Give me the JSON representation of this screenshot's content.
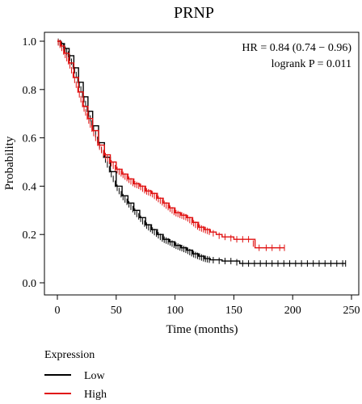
{
  "chart_data": {
    "type": "line",
    "title": "PRNP",
    "xlabel": "Time (months)",
    "ylabel": "Probability",
    "xlim": [
      0,
      250
    ],
    "ylim": [
      0,
      1.05
    ],
    "xticks": [
      "0",
      "50",
      "100",
      "150",
      "200",
      "250"
    ],
    "yticks": [
      "0.0",
      "0.2",
      "0.4",
      "0.6",
      "0.8",
      "1.0"
    ],
    "annotations": [
      "HR = 0.84 (0.74 − 0.96)",
      "logrank P = 0.011"
    ],
    "legend": {
      "title": "Expression",
      "position": "bottom-left"
    },
    "grid": false,
    "series": [
      {
        "name": "Low",
        "color": "#000000",
        "x": [
          0,
          3,
          6,
          10,
          14,
          18,
          22,
          26,
          30,
          35,
          40,
          45,
          50,
          55,
          60,
          65,
          70,
          75,
          80,
          85,
          90,
          95,
          100,
          105,
          110,
          115,
          120,
          125,
          130,
          140,
          150,
          155,
          170,
          185,
          200,
          215,
          230,
          245
        ],
        "y": [
          1.0,
          0.99,
          0.97,
          0.94,
          0.89,
          0.83,
          0.77,
          0.71,
          0.65,
          0.58,
          0.52,
          0.46,
          0.4,
          0.36,
          0.33,
          0.3,
          0.27,
          0.24,
          0.22,
          0.2,
          0.18,
          0.17,
          0.155,
          0.145,
          0.135,
          0.12,
          0.11,
          0.1,
          0.095,
          0.09,
          0.09,
          0.08,
          0.08,
          0.08,
          0.08,
          0.08,
          0.08,
          0.08
        ]
      },
      {
        "name": "High",
        "color": "#e01010",
        "x": [
          0,
          3,
          6,
          10,
          14,
          18,
          22,
          26,
          30,
          35,
          40,
          45,
          50,
          55,
          60,
          65,
          70,
          75,
          80,
          85,
          90,
          95,
          100,
          105,
          110,
          115,
          120,
          125,
          130,
          135,
          140,
          145,
          150,
          155,
          160,
          165,
          168,
          175,
          185,
          193
        ],
        "y": [
          1.0,
          0.98,
          0.95,
          0.91,
          0.85,
          0.79,
          0.73,
          0.68,
          0.63,
          0.57,
          0.53,
          0.5,
          0.47,
          0.45,
          0.43,
          0.41,
          0.4,
          0.38,
          0.37,
          0.35,
          0.33,
          0.31,
          0.29,
          0.28,
          0.27,
          0.25,
          0.23,
          0.22,
          0.21,
          0.2,
          0.19,
          0.19,
          0.18,
          0.18,
          0.18,
          0.18,
          0.145,
          0.145,
          0.145,
          0.145
        ]
      }
    ]
  }
}
